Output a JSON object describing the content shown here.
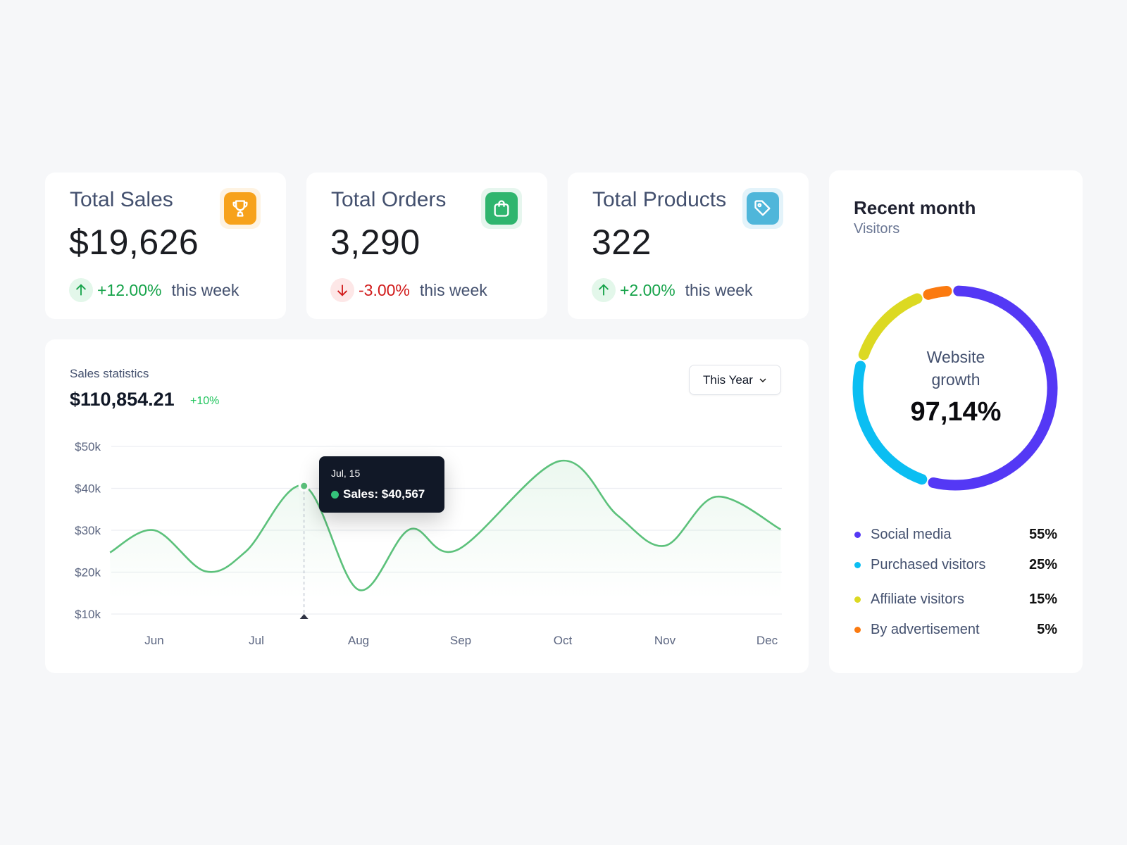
{
  "stats": [
    {
      "title": "Total Sales",
      "value": "$19,626",
      "change": "+12.00%",
      "period": "this week",
      "direction": "up",
      "icon": "trophy-icon",
      "color": "#f7a21b",
      "bg": "#fef3e2"
    },
    {
      "title": "Total Orders",
      "value": "3,290",
      "change": "-3.00%",
      "period": "this week",
      "direction": "down",
      "icon": "shopping-bag-icon",
      "color": "#2fb56e",
      "bg": "#e6f6ee"
    },
    {
      "title": "Total Products",
      "value": "322",
      "change": "+2.00%",
      "period": "this week",
      "direction": "up",
      "icon": "tag-icon",
      "color": "#4fb6da",
      "bg": "#e3f3fa"
    }
  ],
  "sales": {
    "label": "Sales statistics",
    "total": "$110,854.21",
    "delta": "+10%",
    "range": "This Year",
    "tooltip": {
      "date": "Jul, 15",
      "label": "Sales: $40,567"
    }
  },
  "chart_data": {
    "type": "area",
    "x_ticks": [
      "Jun",
      "Jul",
      "Aug",
      "Sep",
      "Oct",
      "Nov",
      "Dec"
    ],
    "y_ticks": [
      "$10k",
      "$20k",
      "$30k",
      "$40k",
      "$50k"
    ],
    "ylim": [
      10000,
      50000
    ],
    "grid": true,
    "color": "#5cc17b",
    "points": [
      {
        "x": "May 18",
        "y": 24700
      },
      {
        "x": "Jun 1",
        "y": 30000
      },
      {
        "x": "Jun 16",
        "y": 20200
      },
      {
        "x": "Jun 28",
        "y": 25000
      },
      {
        "x": "Jul 15",
        "y": 40567
      },
      {
        "x": "Aug 1",
        "y": 15800
      },
      {
        "x": "Aug 16",
        "y": 30200
      },
      {
        "x": "Aug 30",
        "y": 25300
      },
      {
        "x": "Sep 30",
        "y": 46500
      },
      {
        "x": "Oct 17",
        "y": 33600
      },
      {
        "x": "Nov 1",
        "y": 26300
      },
      {
        "x": "Nov 16",
        "y": 38000
      },
      {
        "x": "Dec 5",
        "y": 30200
      }
    ],
    "highlight": "Jul 15"
  },
  "visitors": {
    "title": "Recent month",
    "subtitle": "Visitors",
    "center_label_1": "Website",
    "center_label_2": "growth",
    "center_value": "97,14%",
    "chart_data": {
      "type": "pie",
      "segments": [
        {
          "name": "Social media",
          "value": 55,
          "pct": "55%",
          "color": "#5438f5"
        },
        {
          "name": "Purchased visitors",
          "value": 25,
          "pct": "25%",
          "color": "#0bbef2"
        },
        {
          "name": "Affiliate visitors",
          "value": 15,
          "pct": "15%",
          "color": "#dcd922"
        },
        {
          "name": "By advertisement",
          "value": 5,
          "pct": "5%",
          "color": "#fb7a10"
        }
      ]
    }
  }
}
